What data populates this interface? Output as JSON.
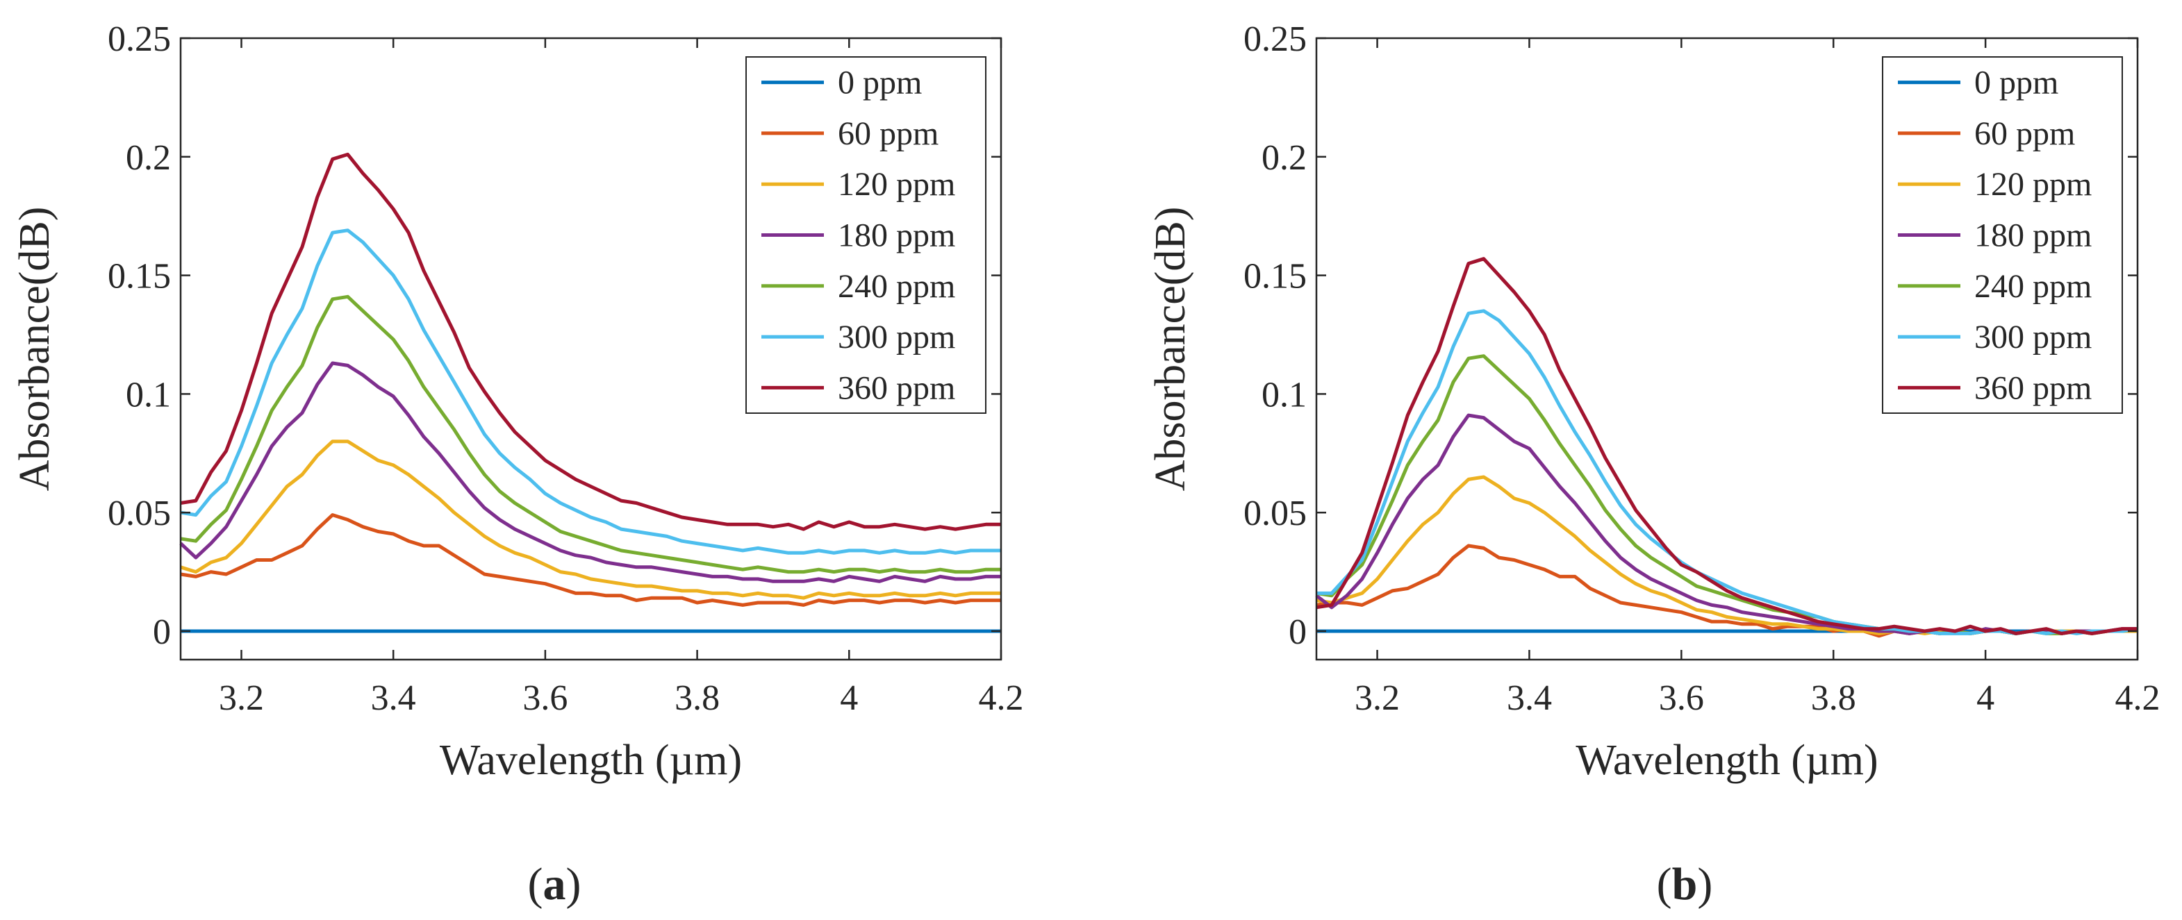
{
  "chart_data": [
    {
      "type": "line",
      "panel_label_open": "(",
      "panel_label_letter": "a",
      "panel_label_close": ")",
      "xlabel": "Wavelength (µm)",
      "ylabel": "Absorbance(dB)",
      "xlim": [
        3.12,
        4.2
      ],
      "ylim": [
        -0.012,
        0.25
      ],
      "xticks": [
        3.2,
        3.4,
        3.6,
        3.8,
        4,
        4.2
      ],
      "xtick_labels": [
        "3.2",
        "3.4",
        "3.6",
        "3.8",
        "4",
        "4.2"
      ],
      "yticks": [
        0,
        0.05,
        0.1,
        0.15,
        0.2,
        0.25
      ],
      "ytick_labels": [
        "0",
        "0.05",
        "0.1",
        "0.15",
        "0.2",
        "0.25"
      ],
      "grid": false,
      "legend_position": "top-right",
      "x": [
        3.12,
        3.14,
        3.16,
        3.18,
        3.2,
        3.22,
        3.24,
        3.26,
        3.28,
        3.3,
        3.32,
        3.34,
        3.36,
        3.38,
        3.4,
        3.42,
        3.44,
        3.46,
        3.48,
        3.5,
        3.52,
        3.54,
        3.56,
        3.58,
        3.6,
        3.62,
        3.64,
        3.66,
        3.68,
        3.7,
        3.72,
        3.74,
        3.76,
        3.78,
        3.8,
        3.82,
        3.84,
        3.86,
        3.88,
        3.9,
        3.92,
        3.94,
        3.96,
        3.98,
        4.0,
        4.02,
        4.04,
        4.06,
        4.08,
        4.1,
        4.12,
        4.14,
        4.16,
        4.18,
        4.2
      ],
      "series": [
        {
          "name": "0 ppm",
          "color": "#0072BD",
          "values": [
            0,
            0,
            0,
            0,
            0,
            0,
            0,
            0,
            0,
            0,
            0,
            0,
            0,
            0,
            0,
            0,
            0,
            0,
            0,
            0,
            0,
            0,
            0,
            0,
            0,
            0,
            0,
            0,
            0,
            0,
            0,
            0,
            0,
            0,
            0,
            0,
            0,
            0,
            0,
            0,
            0,
            0,
            0,
            0,
            0,
            0,
            0,
            0,
            0,
            0,
            0,
            0,
            0,
            0,
            0
          ]
        },
        {
          "name": "60 ppm",
          "color": "#D95319",
          "values": [
            0.024,
            0.023,
            0.025,
            0.024,
            0.027,
            0.03,
            0.03,
            0.033,
            0.036,
            0.043,
            0.049,
            0.047,
            0.044,
            0.042,
            0.041,
            0.038,
            0.036,
            0.036,
            0.032,
            0.028,
            0.024,
            0.023,
            0.022,
            0.021,
            0.02,
            0.018,
            0.016,
            0.016,
            0.015,
            0.015,
            0.013,
            0.014,
            0.014,
            0.014,
            0.012,
            0.013,
            0.012,
            0.011,
            0.012,
            0.012,
            0.012,
            0.011,
            0.013,
            0.012,
            0.013,
            0.013,
            0.012,
            0.013,
            0.013,
            0.012,
            0.013,
            0.012,
            0.013,
            0.013,
            0.013
          ]
        },
        {
          "name": "120 ppm",
          "color": "#EDB120",
          "values": [
            0.027,
            0.025,
            0.029,
            0.031,
            0.037,
            0.045,
            0.053,
            0.061,
            0.066,
            0.074,
            0.08,
            0.08,
            0.076,
            0.072,
            0.07,
            0.066,
            0.061,
            0.056,
            0.05,
            0.045,
            0.04,
            0.036,
            0.033,
            0.031,
            0.028,
            0.025,
            0.024,
            0.022,
            0.021,
            0.02,
            0.019,
            0.019,
            0.018,
            0.017,
            0.017,
            0.016,
            0.016,
            0.015,
            0.016,
            0.015,
            0.015,
            0.014,
            0.016,
            0.015,
            0.016,
            0.015,
            0.015,
            0.016,
            0.015,
            0.015,
            0.016,
            0.015,
            0.016,
            0.016,
            0.016
          ]
        },
        {
          "name": "180 ppm",
          "color": "#7E2F8E",
          "values": [
            0.037,
            0.031,
            0.037,
            0.044,
            0.055,
            0.066,
            0.078,
            0.086,
            0.092,
            0.104,
            0.113,
            0.112,
            0.108,
            0.103,
            0.099,
            0.091,
            0.082,
            0.075,
            0.067,
            0.059,
            0.052,
            0.047,
            0.043,
            0.04,
            0.037,
            0.034,
            0.032,
            0.031,
            0.029,
            0.028,
            0.027,
            0.027,
            0.026,
            0.025,
            0.024,
            0.023,
            0.023,
            0.022,
            0.022,
            0.021,
            0.021,
            0.021,
            0.022,
            0.021,
            0.023,
            0.022,
            0.021,
            0.023,
            0.022,
            0.021,
            0.023,
            0.022,
            0.022,
            0.023,
            0.023
          ]
        },
        {
          "name": "240 ppm",
          "color": "#77AC30",
          "values": [
            0.039,
            0.038,
            0.045,
            0.051,
            0.064,
            0.078,
            0.093,
            0.103,
            0.112,
            0.128,
            0.14,
            0.141,
            0.135,
            0.129,
            0.123,
            0.114,
            0.103,
            0.094,
            0.085,
            0.075,
            0.066,
            0.059,
            0.054,
            0.05,
            0.046,
            0.042,
            0.04,
            0.038,
            0.036,
            0.034,
            0.033,
            0.032,
            0.031,
            0.03,
            0.029,
            0.028,
            0.027,
            0.026,
            0.027,
            0.026,
            0.025,
            0.025,
            0.026,
            0.025,
            0.026,
            0.026,
            0.025,
            0.026,
            0.025,
            0.025,
            0.026,
            0.025,
            0.025,
            0.026,
            0.026
          ]
        },
        {
          "name": "300 ppm",
          "color": "#4DBEEE",
          "values": [
            0.05,
            0.049,
            0.057,
            0.063,
            0.078,
            0.095,
            0.113,
            0.125,
            0.136,
            0.154,
            0.168,
            0.169,
            0.164,
            0.157,
            0.15,
            0.14,
            0.127,
            0.116,
            0.105,
            0.094,
            0.083,
            0.075,
            0.069,
            0.064,
            0.058,
            0.054,
            0.051,
            0.048,
            0.046,
            0.043,
            0.042,
            0.041,
            0.04,
            0.038,
            0.037,
            0.036,
            0.035,
            0.034,
            0.035,
            0.034,
            0.033,
            0.033,
            0.034,
            0.033,
            0.034,
            0.034,
            0.033,
            0.034,
            0.033,
            0.033,
            0.034,
            0.033,
            0.034,
            0.034,
            0.034
          ]
        },
        {
          "name": "360 ppm",
          "color": "#A2142F",
          "values": [
            0.054,
            0.055,
            0.067,
            0.076,
            0.093,
            0.113,
            0.134,
            0.148,
            0.162,
            0.183,
            0.199,
            0.201,
            0.193,
            0.186,
            0.178,
            0.168,
            0.152,
            0.139,
            0.126,
            0.111,
            0.101,
            0.092,
            0.084,
            0.078,
            0.072,
            0.068,
            0.064,
            0.061,
            0.058,
            0.055,
            0.054,
            0.052,
            0.05,
            0.048,
            0.047,
            0.046,
            0.045,
            0.045,
            0.045,
            0.044,
            0.045,
            0.043,
            0.046,
            0.044,
            0.046,
            0.044,
            0.044,
            0.045,
            0.044,
            0.043,
            0.044,
            0.043,
            0.044,
            0.045,
            0.045
          ]
        }
      ]
    },
    {
      "type": "line",
      "panel_label_open": "(",
      "panel_label_letter": "b",
      "panel_label_close": ")",
      "xlabel": "Wavelength (µm)",
      "ylabel": "Absorbance(dB)",
      "xlim": [
        3.12,
        4.2
      ],
      "ylim": [
        -0.012,
        0.25
      ],
      "xticks": [
        3.2,
        3.4,
        3.6,
        3.8,
        4,
        4.2
      ],
      "xtick_labels": [
        "3.2",
        "3.4",
        "3.6",
        "3.8",
        "4",
        "4.2"
      ],
      "yticks": [
        0,
        0.05,
        0.1,
        0.15,
        0.2,
        0.25
      ],
      "ytick_labels": [
        "0",
        "0.05",
        "0.1",
        "0.15",
        "0.2",
        "0.25"
      ],
      "grid": false,
      "legend_position": "top-right",
      "x": [
        3.12,
        3.14,
        3.16,
        3.18,
        3.2,
        3.22,
        3.24,
        3.26,
        3.28,
        3.3,
        3.32,
        3.34,
        3.36,
        3.38,
        3.4,
        3.42,
        3.44,
        3.46,
        3.48,
        3.5,
        3.52,
        3.54,
        3.56,
        3.58,
        3.6,
        3.62,
        3.64,
        3.66,
        3.68,
        3.7,
        3.72,
        3.74,
        3.76,
        3.78,
        3.8,
        3.82,
        3.84,
        3.86,
        3.88,
        3.9,
        3.92,
        3.94,
        3.96,
        3.98,
        4.0,
        4.02,
        4.04,
        4.06,
        4.08,
        4.1,
        4.12,
        4.14,
        4.16,
        4.18,
        4.2
      ],
      "series": [
        {
          "name": "0 ppm",
          "color": "#0072BD",
          "values": [
            0,
            0,
            0,
            0,
            0,
            0,
            0,
            0,
            0,
            0,
            0,
            0,
            0,
            0,
            0,
            0,
            0,
            0,
            0,
            0,
            0,
            0,
            0,
            0,
            0,
            0,
            0,
            0,
            0,
            0,
            0,
            0,
            0,
            0,
            0,
            0,
            0,
            0,
            0,
            0,
            0,
            0,
            0,
            0,
            0,
            0,
            0,
            0,
            0,
            0,
            0,
            0,
            0,
            0,
            0
          ]
        },
        {
          "name": "60 ppm",
          "color": "#D95319",
          "values": [
            0.011,
            0.012,
            0.012,
            0.011,
            0.014,
            0.017,
            0.018,
            0.021,
            0.024,
            0.031,
            0.036,
            0.035,
            0.031,
            0.03,
            0.028,
            0.026,
            0.023,
            0.023,
            0.018,
            0.015,
            0.012,
            0.011,
            0.01,
            0.009,
            0.008,
            0.006,
            0.004,
            0.004,
            0.003,
            0.003,
            0.001,
            0.002,
            0.002,
            0.002,
            0.0,
            0.001,
            0.0,
            -0.002,
            0.0,
            -0.001,
            0.0,
            -0.001,
            0.0,
            -0.001,
            0.0,
            0.0,
            -0.001,
            0.0,
            0.0,
            -0.001,
            0.0,
            -0.001,
            0.0,
            0.0,
            0.0
          ]
        },
        {
          "name": "120 ppm",
          "color": "#EDB120",
          "values": [
            0.013,
            0.012,
            0.014,
            0.016,
            0.022,
            0.03,
            0.038,
            0.045,
            0.05,
            0.058,
            0.064,
            0.065,
            0.061,
            0.056,
            0.054,
            0.05,
            0.045,
            0.04,
            0.034,
            0.029,
            0.024,
            0.02,
            0.017,
            0.015,
            0.012,
            0.009,
            0.008,
            0.006,
            0.005,
            0.004,
            0.003,
            0.003,
            0.002,
            0.001,
            0.001,
            0.0,
            0.0,
            -0.001,
            0.0,
            0.0,
            -0.001,
            0.0,
            0.0,
            -0.001,
            0.0,
            0.0,
            -0.001,
            0.0,
            0.0,
            0.0,
            0.0,
            0.0,
            0.0,
            0.0,
            0.0
          ]
        },
        {
          "name": "180 ppm",
          "color": "#7E2F8E",
          "values": [
            0.015,
            0.01,
            0.015,
            0.022,
            0.033,
            0.045,
            0.056,
            0.064,
            0.07,
            0.082,
            0.091,
            0.09,
            0.085,
            0.08,
            0.077,
            0.069,
            0.061,
            0.054,
            0.046,
            0.038,
            0.031,
            0.026,
            0.022,
            0.019,
            0.016,
            0.013,
            0.011,
            0.01,
            0.008,
            0.007,
            0.006,
            0.005,
            0.004,
            0.003,
            0.002,
            0.001,
            0.001,
            0.0,
            0.0,
            -0.001,
            0.0,
            -0.001,
            0.0,
            -0.001,
            0.001,
            0.0,
            -0.001,
            0.0,
            0.0,
            -0.001,
            0.0,
            0.0,
            0.0,
            0.001,
            0.001
          ]
        },
        {
          "name": "240 ppm",
          "color": "#77AC30",
          "values": [
            0.016,
            0.015,
            0.022,
            0.028,
            0.041,
            0.055,
            0.07,
            0.08,
            0.089,
            0.105,
            0.115,
            0.116,
            0.11,
            0.104,
            0.098,
            0.089,
            0.079,
            0.07,
            0.061,
            0.051,
            0.043,
            0.036,
            0.031,
            0.027,
            0.023,
            0.019,
            0.017,
            0.015,
            0.013,
            0.011,
            0.009,
            0.008,
            0.007,
            0.006,
            0.004,
            0.003,
            0.002,
            0.001,
            0.001,
            0.0,
            0.0,
            -0.001,
            0.0,
            -0.001,
            0.0,
            0.0,
            -0.001,
            0.0,
            -0.001,
            -0.001,
            0.0,
            -0.001,
            0.0,
            0.0,
            0.001
          ]
        },
        {
          "name": "300 ppm",
          "color": "#4DBEEE",
          "values": [
            0.016,
            0.016,
            0.023,
            0.03,
            0.046,
            0.063,
            0.08,
            0.092,
            0.103,
            0.12,
            0.134,
            0.135,
            0.131,
            0.124,
            0.117,
            0.107,
            0.095,
            0.084,
            0.074,
            0.063,
            0.053,
            0.045,
            0.039,
            0.034,
            0.029,
            0.025,
            0.022,
            0.019,
            0.016,
            0.014,
            0.012,
            0.01,
            0.008,
            0.006,
            0.004,
            0.003,
            0.002,
            0.001,
            0.001,
            0.0,
            0.0,
            -0.001,
            -0.001,
            -0.001,
            0.0,
            0.0,
            -0.001,
            0.0,
            -0.001,
            0.0,
            -0.001,
            0.0,
            0.0,
            0.0,
            0.001
          ]
        },
        {
          "name": "360 ppm",
          "color": "#A2142F",
          "values": [
            0.01,
            0.011,
            0.022,
            0.033,
            0.052,
            0.071,
            0.091,
            0.105,
            0.118,
            0.137,
            0.155,
            0.157,
            0.15,
            0.143,
            0.135,
            0.125,
            0.11,
            0.098,
            0.086,
            0.073,
            0.062,
            0.051,
            0.043,
            0.035,
            0.028,
            0.025,
            0.021,
            0.017,
            0.014,
            0.012,
            0.01,
            0.008,
            0.006,
            0.004,
            0.003,
            0.002,
            0.001,
            0.001,
            0.002,
            0.001,
            0.0,
            0.001,
            0.0,
            0.002,
            0.0,
            0.001,
            -0.001,
            0.0,
            0.001,
            -0.001,
            0.0,
            -0.001,
            0.0,
            0.001,
            0.001
          ]
        }
      ]
    }
  ]
}
